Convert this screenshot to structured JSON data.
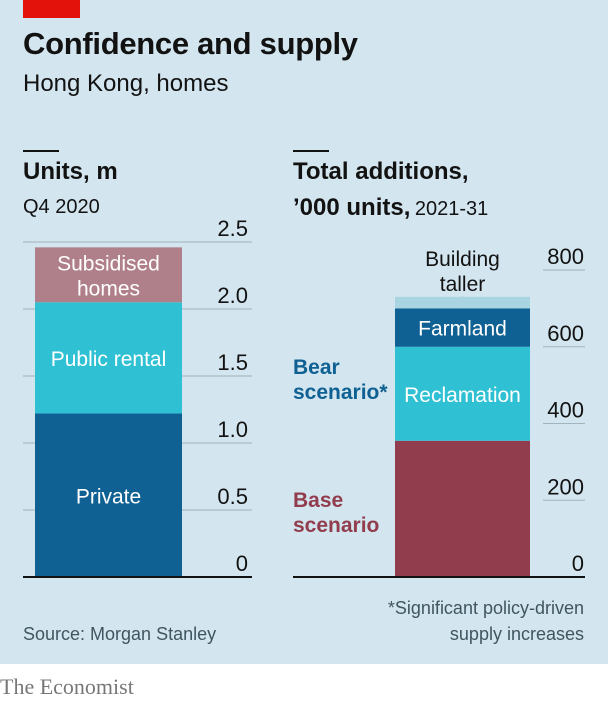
{
  "header": {
    "title": "Confidence and supply",
    "subtitle": "Hong Kong, homes"
  },
  "source": "Source: Morgan Stanley",
  "footnote": {
    "line1": "*Significant policy-driven",
    "line2": "supply increases"
  },
  "brand": "The Economist",
  "colors": {
    "background": "#d3e5ee",
    "accent": "#e3120b",
    "private": "#0f6193",
    "public_rental": "#2fc1d3",
    "subsidised": "#b0808a",
    "base": "#923d4d",
    "reclamation": "#2fc1d3",
    "farmland": "#0f6193",
    "building_taller": "#a9d4e1"
  },
  "chart_data": [
    {
      "type": "bar",
      "stacked": true,
      "title": "Units, m",
      "subtitle": "Q4 2020",
      "ylim": [
        0,
        2.5
      ],
      "yticks": [
        "0",
        "0.5",
        "1.0",
        "1.5",
        "2.0",
        "2.5"
      ],
      "ytick_values": [
        0,
        0.5,
        1.0,
        1.5,
        2.0,
        2.5
      ],
      "series": [
        {
          "name": "Private",
          "value": 1.22,
          "color_key": "private",
          "label_lines": [
            "Private"
          ],
          "label_color": "#ffffff"
        },
        {
          "name": "Public rental",
          "value": 0.83,
          "color_key": "public_rental",
          "label_lines": [
            "Public rental"
          ],
          "label_color": "#ffffff"
        },
        {
          "name": "Subsidised homes",
          "value": 0.41,
          "color_key": "subsidised",
          "label_lines": [
            "Subsidised",
            "homes"
          ],
          "label_color": "#ffffff"
        }
      ]
    },
    {
      "type": "bar",
      "stacked": true,
      "title": "Total additions,",
      "title_line2": "’000 units,",
      "subtitle": "2021-31",
      "ylim": [
        0,
        900
      ],
      "yticks": [
        "0",
        "200",
        "400",
        "600",
        "800"
      ],
      "ytick_values": [
        0,
        200,
        400,
        600,
        800
      ],
      "series": [
        {
          "name": "Base scenario",
          "value": 355,
          "color_key": "base",
          "label_lines": [],
          "label_color": "#ffffff"
        },
        {
          "name": "Reclamation",
          "value": 245,
          "color_key": "reclamation",
          "label_lines": [
            "Reclamation"
          ],
          "label_color": "#ffffff"
        },
        {
          "name": "Farmland",
          "value": 100,
          "color_key": "farmland",
          "label_lines": [
            "Farmland"
          ],
          "label_color": "#ffffff"
        },
        {
          "name": "Building taller",
          "value": 30,
          "color_key": "building_taller",
          "label_lines": [],
          "label_color": "#121212"
        }
      ],
      "annotations": {
        "building_taller": [
          "Building",
          "taller"
        ],
        "bear": [
          "Bear",
          "scenario*"
        ],
        "base": [
          "Base",
          "scenario"
        ]
      }
    }
  ]
}
